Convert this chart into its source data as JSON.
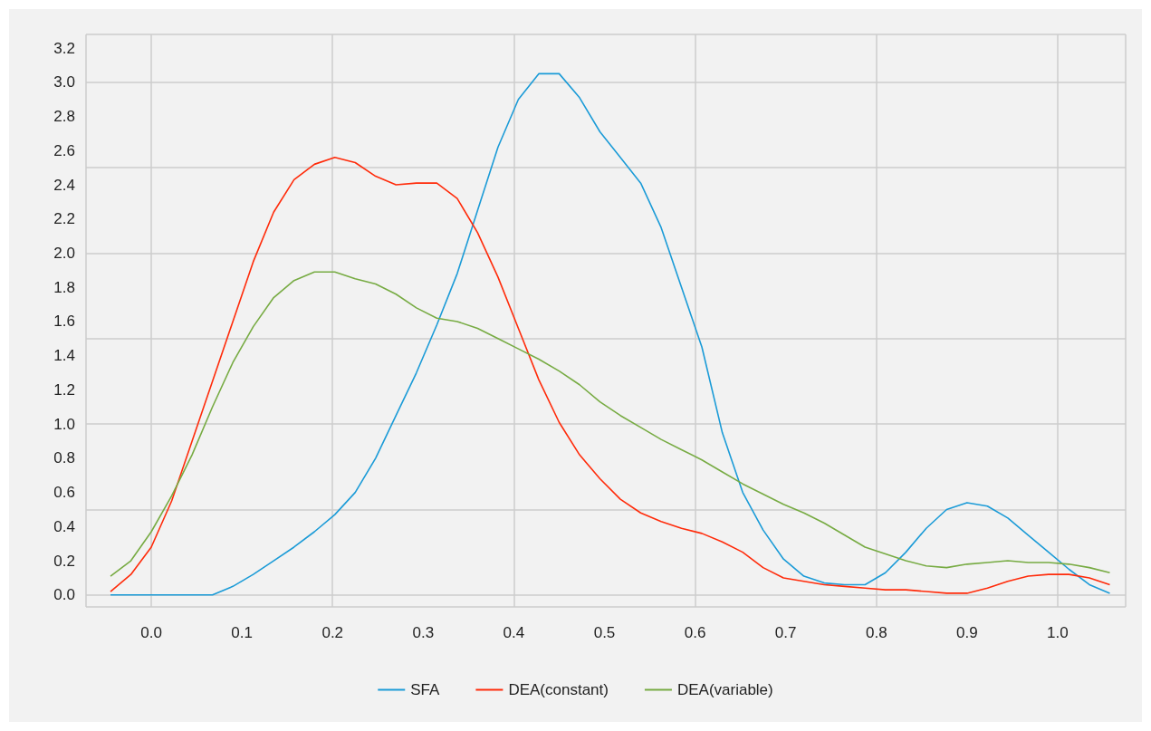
{
  "chart_data": {
    "type": "line",
    "x": [
      -0.045,
      -0.0225,
      0,
      0.0225,
      0.045,
      0.0675,
      0.09,
      0.1125,
      0.135,
      0.1575,
      0.18,
      0.2025,
      0.225,
      0.2475,
      0.27,
      0.2925,
      0.315,
      0.3375,
      0.36,
      0.3825,
      0.405,
      0.4275,
      0.45,
      0.4725,
      0.495,
      0.5175,
      0.54,
      0.5625,
      0.585,
      0.6075,
      0.63,
      0.6525,
      0.675,
      0.6975,
      0.72,
      0.7425,
      0.765,
      0.7875,
      0.81,
      0.8325,
      0.855,
      0.8775,
      0.9,
      0.9225,
      0.945,
      0.9675,
      0.99,
      1.0125,
      1.035,
      1.0575
    ],
    "series": [
      {
        "name": "SFA",
        "color": "#1b9bd7",
        "values": [
          0,
          0,
          0,
          0,
          0,
          0,
          0.05,
          0.12,
          0.2,
          0.28,
          0.37,
          0.47,
          0.6,
          0.8,
          1.05,
          1.3,
          1.58,
          1.88,
          2.25,
          2.62,
          2.9,
          3.05,
          3.05,
          2.91,
          2.71,
          2.56,
          2.41,
          2.15,
          1.8,
          1.45,
          0.95,
          0.6,
          0.38,
          0.21,
          0.11,
          0.07,
          0.06,
          0.06,
          0.13,
          0.25,
          0.39,
          0.5,
          0.54,
          0.52,
          0.45,
          0.35,
          0.25,
          0.15,
          0.06,
          0.01
        ]
      },
      {
        "name": "DEA(constant)",
        "color": "#ff2b0a",
        "values": [
          0.02,
          0.12,
          0.28,
          0.55,
          0.9,
          1.25,
          1.6,
          1.95,
          2.24,
          2.43,
          2.52,
          2.56,
          2.53,
          2.45,
          2.4,
          2.41,
          2.41,
          2.32,
          2.12,
          1.86,
          1.56,
          1.26,
          1.01,
          0.82,
          0.68,
          0.56,
          0.48,
          0.43,
          0.39,
          0.36,
          0.31,
          0.25,
          0.16,
          0.1,
          0.08,
          0.06,
          0.05,
          0.04,
          0.03,
          0.03,
          0.02,
          0.01,
          0.01,
          0.04,
          0.08,
          0.11,
          0.12,
          0.12,
          0.1,
          0.06
        ]
      },
      {
        "name": "DEA(variable)",
        "color": "#77ab43",
        "values": [
          0.11,
          0.2,
          0.37,
          0.58,
          0.82,
          1.1,
          1.36,
          1.57,
          1.74,
          1.84,
          1.89,
          1.89,
          1.85,
          1.82,
          1.76,
          1.68,
          1.62,
          1.6,
          1.56,
          1.5,
          1.44,
          1.38,
          1.31,
          1.23,
          1.13,
          1.05,
          0.98,
          0.91,
          0.85,
          0.79,
          0.72,
          0.65,
          0.59,
          0.53,
          0.48,
          0.42,
          0.35,
          0.28,
          0.24,
          0.2,
          0.17,
          0.16,
          0.18,
          0.19,
          0.2,
          0.19,
          0.19,
          0.18,
          0.16,
          0.13
        ]
      }
    ],
    "xlim": [
      -0.072,
      1.075
    ],
    "xticks": [
      {
        "value": 0,
        "label": "0.0"
      },
      0.1,
      0.2,
      0.3,
      0.4,
      0.5,
      0.6,
      0.7,
      0.8,
      0.9,
      {
        "value": 1,
        "label": "1.0"
      }
    ],
    "ylim": [
      -0.07,
      3.28
    ],
    "yticks": [
      {
        "value": 0,
        "label": "0.0"
      },
      0.2,
      0.4,
      0.6,
      0.8,
      {
        "value": 1,
        "label": "1.0"
      },
      1.2,
      1.4,
      1.6,
      1.8,
      {
        "value": 2,
        "label": "2.0"
      },
      2.2,
      2.4,
      2.6,
      2.8,
      {
        "value": 3,
        "label": "3.0"
      },
      3.2
    ],
    "grid": true,
    "legend": "bottom",
    "marker": "none",
    "line_style": "solid"
  }
}
